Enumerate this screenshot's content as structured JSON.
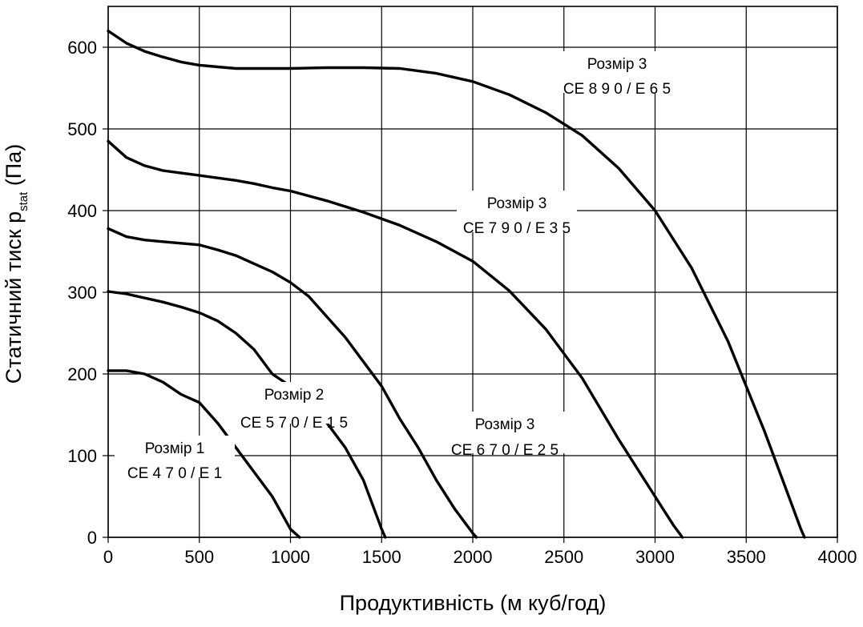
{
  "chart_data": {
    "type": "line",
    "xlabel": "Продуктивність (м куб/год)",
    "ylabel_main": "Статичний тиск   p",
    "ylabel_sub": "stat",
    "ylabel_unit": " (Па)",
    "xlim": [
      0,
      4000
    ],
    "ylim": [
      0,
      650
    ],
    "x_ticks": [
      0,
      500,
      1000,
      1500,
      2000,
      2500,
      3000,
      3500,
      4000
    ],
    "y_ticks": [
      0,
      100,
      200,
      300,
      400,
      500,
      600
    ],
    "grid": true,
    "series": [
      {
        "name": "CE470/E1",
        "label_line1": "Розмір 1",
        "label_line2": "CE 4 7 0 / E 1",
        "x": [
          0,
          100,
          200,
          300,
          400,
          500,
          600,
          700,
          800,
          900,
          1000,
          1050
        ],
        "y": [
          204,
          204,
          200,
          190,
          175,
          165,
          140,
          110,
          80,
          50,
          10,
          0
        ]
      },
      {
        "name": "CE570/E15",
        "label_line1": "Розмір 2",
        "label_line2": "CE 5 7 0 / E 1 5",
        "x": [
          0,
          100,
          200,
          300,
          400,
          500,
          600,
          700,
          800,
          900,
          1000,
          1100,
          1200,
          1300,
          1400,
          1500,
          1520
        ],
        "y": [
          301,
          298,
          293,
          288,
          282,
          275,
          265,
          250,
          230,
          200,
          185,
          175,
          140,
          110,
          70,
          10,
          0
        ]
      },
      {
        "name": "CE670/E25",
        "label_line1": "Розмір  3",
        "label_line2": "CE 6 7 0 / E 2 5",
        "x": [
          0,
          100,
          200,
          300,
          400,
          500,
          600,
          700,
          800,
          900,
          1000,
          1100,
          1200,
          1300,
          1400,
          1500,
          1600,
          1700,
          1800,
          1900,
          2000,
          2020
        ],
        "y": [
          378,
          368,
          364,
          362,
          360,
          358,
          352,
          345,
          335,
          325,
          312,
          295,
          270,
          245,
          215,
          185,
          145,
          110,
          70,
          35,
          5,
          0
        ]
      },
      {
        "name": "CE790/E35",
        "label_line1": "Розмір 3",
        "label_line2": "CE 7 9 0 / E 3 5",
        "x": [
          0,
          100,
          200,
          300,
          400,
          500,
          600,
          700,
          800,
          900,
          1000,
          1200,
          1400,
          1600,
          1800,
          2000,
          2200,
          2400,
          2600,
          2800,
          3000,
          3100,
          3150
        ],
        "y": [
          485,
          465,
          455,
          449,
          446,
          443,
          440,
          437,
          433,
          428,
          424,
          412,
          398,
          382,
          362,
          338,
          302,
          255,
          195,
          120,
          50,
          15,
          0
        ]
      },
      {
        "name": "CE890/E65",
        "label_line1": "Розмір 3",
        "label_line2": "CE 8 9 0 / E 6 5",
        "x": [
          0,
          100,
          200,
          300,
          400,
          500,
          600,
          700,
          800,
          1000,
          1200,
          1400,
          1600,
          1800,
          2000,
          2200,
          2400,
          2600,
          2800,
          3000,
          3200,
          3400,
          3600,
          3700,
          3800,
          3820
        ],
        "y": [
          620,
          605,
          595,
          588,
          582,
          578,
          576,
          574,
          574,
          574,
          575,
          575,
          574,
          568,
          558,
          542,
          520,
          492,
          452,
          400,
          330,
          240,
          130,
          70,
          10,
          0
        ]
      }
    ]
  }
}
